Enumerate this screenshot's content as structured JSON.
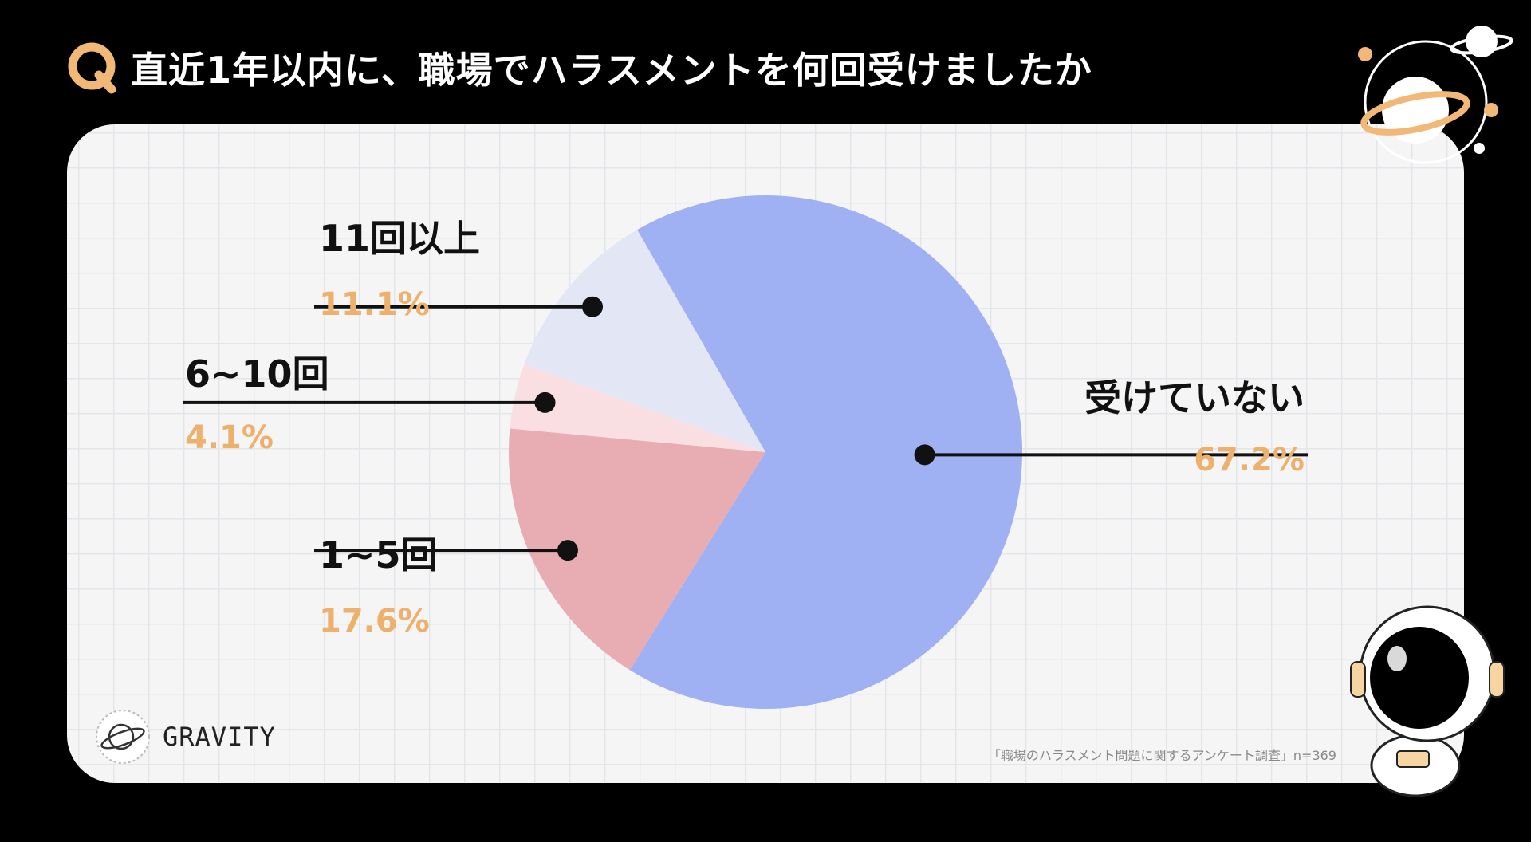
{
  "header": {
    "badge": "Q",
    "question": "直近1年以内に、職場でハラスメントを何回受けましたか"
  },
  "chart_data": {
    "type": "pie",
    "title": "直近1年以内に、職場でハラスメントを何回受けましたか",
    "slices": [
      {
        "label": "受けていない",
        "value": 67.2,
        "value_label": "67.2%",
        "color": "#9fb0f3"
      },
      {
        "label": "1~5回",
        "value": 17.6,
        "value_label": "17.6%",
        "color": "#e8adb2"
      },
      {
        "label": "6~10回",
        "value": 4.1,
        "value_label": "4.1%",
        "color": "#f9dfe2"
      },
      {
        "label": "11回以上",
        "value": 11.1,
        "value_label": "11.1%",
        "color": "#e2e6f5"
      }
    ],
    "label_color": "#111111",
    "value_color": "#eeb06d"
  },
  "brand": {
    "name": "GRAVITY"
  },
  "footer": {
    "source": "「職場のハラスメント問題に関するアンケート調査」n=369"
  }
}
